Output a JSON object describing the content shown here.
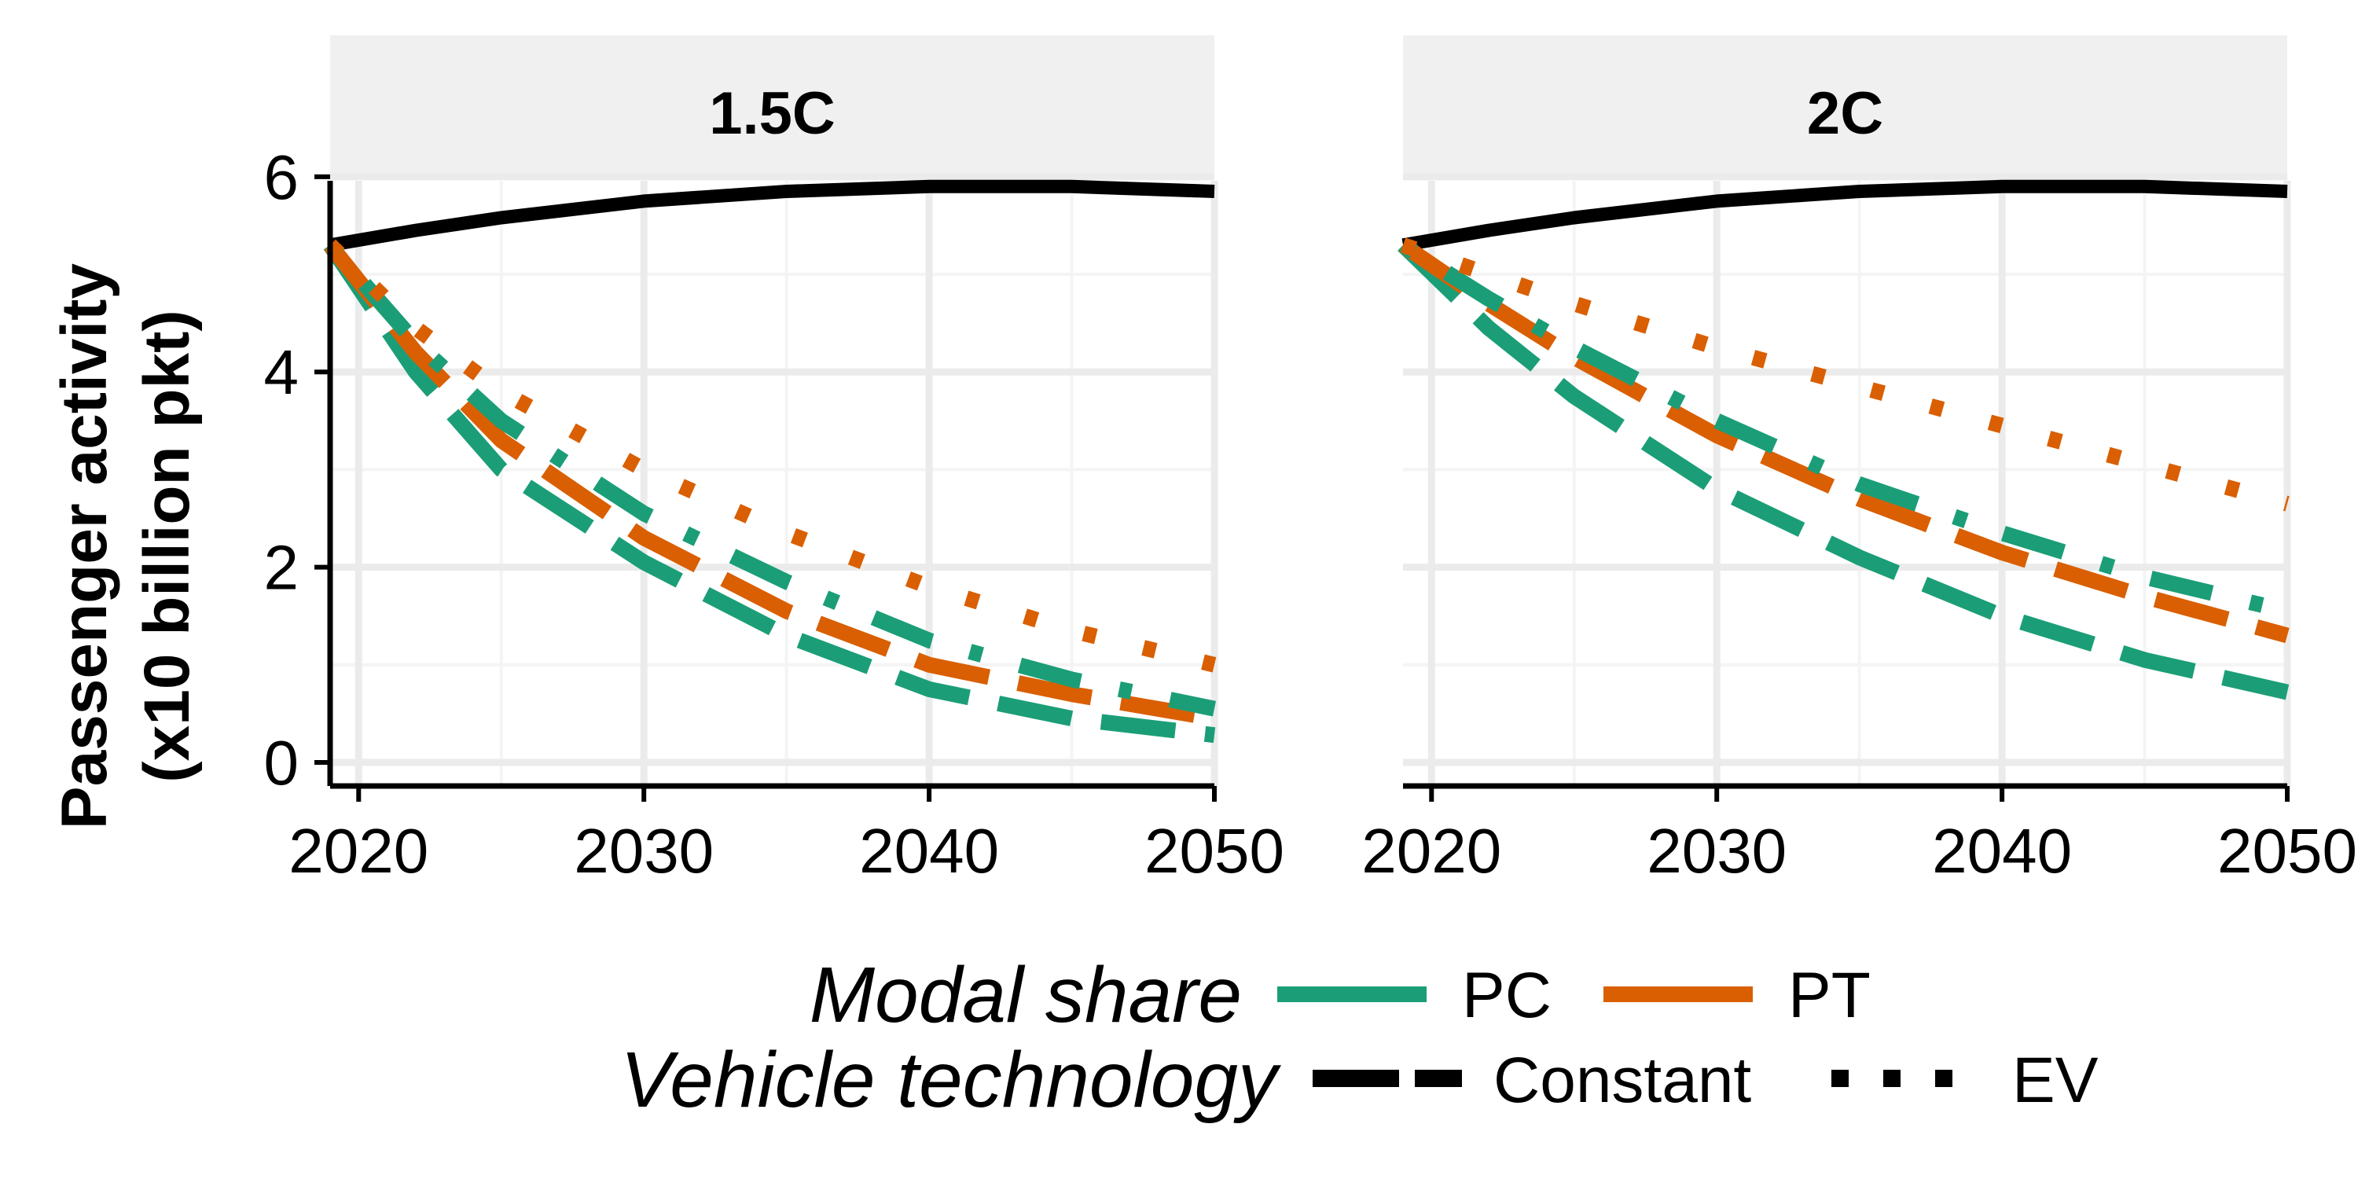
{
  "chart_data": {
    "type": "line",
    "ylabel": [
      "Passenger activity",
      "(x10 billion pkt)"
    ],
    "xlim": [
      2019,
      2050
    ],
    "ylim": [
      0,
      6.2
    ],
    "x_ticks": [
      2020,
      2030,
      2040,
      2050
    ],
    "y_ticks": [
      0,
      2,
      4,
      6
    ],
    "grid": true,
    "legend_placement": "bottom",
    "legend": {
      "modal_share": {
        "title": "Modal share",
        "items": [
          {
            "label": "PC",
            "color": "#1b9e77"
          },
          {
            "label": "PT",
            "color": "#d95f02"
          }
        ]
      },
      "vehicle_technology": {
        "title": "Vehicle technology",
        "items": [
          {
            "label": "",
            "linetype": "solid"
          },
          {
            "label": "Constant",
            "linetype": "dashed"
          },
          {
            "label": "EV",
            "linetype": "dotted"
          }
        ]
      }
    },
    "panels": [
      {
        "title": "1.5C",
        "x": [
          2019,
          2022,
          2025,
          2030,
          2035,
          2040,
          2045,
          2050
        ],
        "series": [
          {
            "modal": "",
            "tech": "",
            "color": "#000000",
            "dash": "solid",
            "values": [
              5.3,
              5.45,
              5.58,
              5.75,
              5.85,
              5.9,
              5.9,
              5.85
            ]
          },
          {
            "modal": "PC",
            "tech": "Constant",
            "color": "#1b9e77",
            "dash": "dashed",
            "values": [
              5.3,
              4.0,
              3.0,
              2.05,
              1.3,
              0.75,
              0.45,
              0.28
            ]
          },
          {
            "modal": "PT",
            "tech": "Constant",
            "color": "#d95f02",
            "dash": "dashed",
            "values": [
              5.3,
              4.2,
              3.3,
              2.3,
              1.55,
              1.0,
              0.7,
              0.45
            ]
          },
          {
            "modal": "PC",
            "tech": "EV",
            "color": "#1b9e77",
            "dash": "dotdash",
            "values": [
              5.3,
              4.3,
              3.5,
              2.55,
              1.85,
              1.25,
              0.85,
              0.55
            ]
          },
          {
            "modal": "PT",
            "tech": "EV",
            "color": "#d95f02",
            "dash": "dotted",
            "values": [
              5.3,
              4.45,
              3.8,
              3.0,
              2.35,
              1.8,
              1.35,
              1.0
            ]
          }
        ]
      },
      {
        "title": "2C",
        "x": [
          2019,
          2022,
          2025,
          2030,
          2035,
          2040,
          2045,
          2050
        ],
        "series": [
          {
            "modal": "",
            "tech": "",
            "color": "#000000",
            "dash": "solid",
            "values": [
              5.3,
              5.45,
              5.58,
              5.75,
              5.85,
              5.9,
              5.9,
              5.85
            ]
          },
          {
            "modal": "PC",
            "tech": "Constant",
            "color": "#1b9e77",
            "dash": "dashed",
            "values": [
              5.3,
              4.45,
              3.75,
              2.8,
              2.1,
              1.5,
              1.05,
              0.72
            ]
          },
          {
            "modal": "PT",
            "tech": "Constant",
            "color": "#d95f02",
            "dash": "dashed",
            "values": [
              5.3,
              4.7,
              4.15,
              3.35,
              2.7,
              2.15,
              1.7,
              1.3
            ]
          },
          {
            "modal": "PC",
            "tech": "EV",
            "color": "#1b9e77",
            "dash": "dotdash",
            "values": [
              5.3,
              4.75,
              4.25,
              3.5,
              2.85,
              2.35,
              1.9,
              1.55
            ]
          },
          {
            "modal": "PT",
            "tech": "EV",
            "color": "#d95f02",
            "dash": "dotted",
            "values": [
              5.3,
              5.0,
              4.7,
              4.25,
              3.85,
              3.45,
              3.05,
              2.65
            ]
          }
        ]
      }
    ]
  }
}
